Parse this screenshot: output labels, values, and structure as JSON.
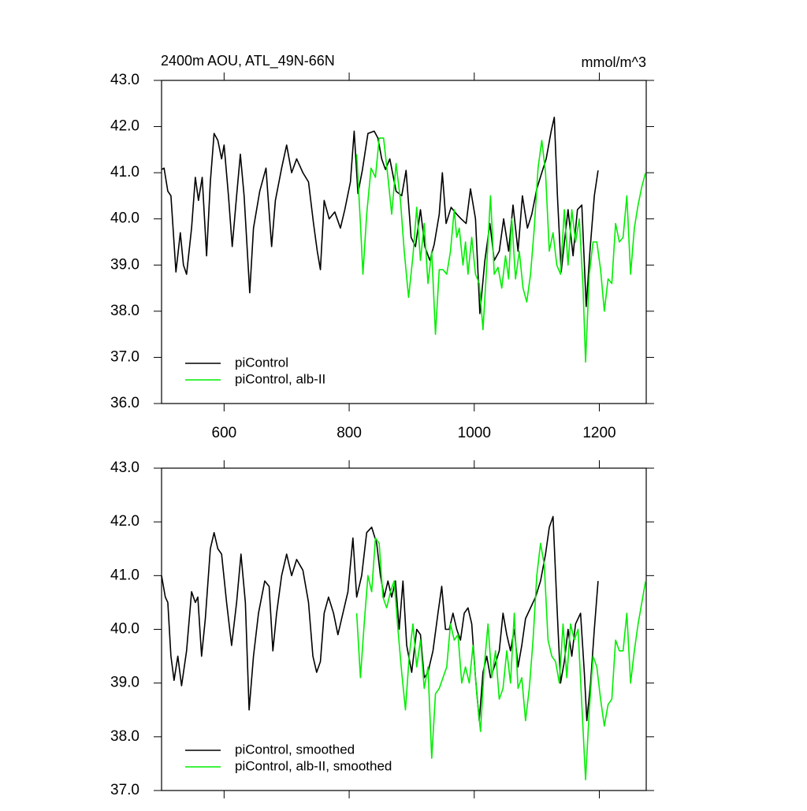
{
  "chart_data": [
    {
      "type": "line",
      "title": "2400m AOU, ATL_49N-66N",
      "units": "mmol/m^3",
      "xlim": [
        500,
        1275
      ],
      "xticks": [
        600,
        800,
        1000,
        1200
      ],
      "ylim": [
        36,
        43
      ],
      "yticks": [
        {
          "value": 36,
          "label": "36.0"
        },
        {
          "value": 37,
          "label": "37.0"
        },
        {
          "value": 38,
          "label": "38.0"
        },
        {
          "value": 39,
          "label": "39.0"
        },
        {
          "value": 40,
          "label": "40.0"
        },
        {
          "value": 41,
          "label": "41.0"
        },
        {
          "value": 42,
          "label": "42.0"
        },
        {
          "value": 43,
          "label": "43.0"
        }
      ],
      "legend": "lower left",
      "series": [
        {
          "name": "piControl",
          "color": "#000000",
          "x": [
            500,
            504,
            510,
            515,
            523,
            530,
            535,
            540,
            548,
            554,
            559,
            565,
            572,
            578,
            584,
            590,
            596,
            600,
            607,
            613,
            620,
            626,
            632,
            641,
            647,
            657,
            667,
            676,
            682,
            692,
            700,
            708,
            716,
            726,
            735,
            743,
            749,
            754,
            760,
            768,
            777,
            786,
            793,
            802,
            808,
            814,
            821,
            830,
            840,
            846,
            852,
            858,
            865,
            875,
            884,
            891,
            899,
            906,
            914,
            921,
            929,
            936,
            944,
            949,
            955,
            963,
            972,
            979,
            987,
            994,
            1002,
            1009,
            1017,
            1025,
            1032,
            1040,
            1047,
            1055,
            1062,
            1070,
            1077,
            1085,
            1092,
            1100,
            1108,
            1115,
            1123,
            1128,
            1133,
            1139,
            1145,
            1150,
            1158,
            1165,
            1172,
            1179,
            1185,
            1192,
            1198
          ],
          "values": [
            41.07,
            41.1,
            40.6,
            40.5,
            38.85,
            39.7,
            39.0,
            38.8,
            39.8,
            40.9,
            40.4,
            40.9,
            39.2,
            40.8,
            41.85,
            41.7,
            41.3,
            41.6,
            40.5,
            39.4,
            40.5,
            41.4,
            40.5,
            38.4,
            39.8,
            40.6,
            41.1,
            39.4,
            40.4,
            41.1,
            41.6,
            41.0,
            41.3,
            41.0,
            40.8,
            39.9,
            39.3,
            38.9,
            40.4,
            40.0,
            40.15,
            39.8,
            40.2,
            40.8,
            41.9,
            40.55,
            41.05,
            41.85,
            41.9,
            41.75,
            41.3,
            41.07,
            41.3,
            40.6,
            40.5,
            41.05,
            39.6,
            39.4,
            40.2,
            39.4,
            39.1,
            39.45,
            40.1,
            41.0,
            39.9,
            40.25,
            40.1,
            40.0,
            39.9,
            40.65,
            40.0,
            37.95,
            39.1,
            39.9,
            39.1,
            39.3,
            40.0,
            39.3,
            40.3,
            39.3,
            40.5,
            39.8,
            40.1,
            40.65,
            41.0,
            41.3,
            41.9,
            42.2,
            40.5,
            38.85,
            39.6,
            40.2,
            39.2,
            40.2,
            40.3,
            38.1,
            39.3,
            40.5,
            41.05
          ]
        },
        {
          "name": "piControl, alb-II",
          "color": "#00ee00",
          "x": [
            812,
            818,
            822,
            828,
            835,
            842,
            848,
            855,
            862,
            868,
            875,
            882,
            888,
            895,
            902,
            908,
            914,
            920,
            926,
            932,
            938,
            944,
            950,
            956,
            962,
            968,
            972,
            976,
            982,
            986,
            990,
            996,
            1002,
            1008,
            1014,
            1020,
            1026,
            1032,
            1038,
            1044,
            1050,
            1055,
            1060,
            1066,
            1072,
            1078,
            1084,
            1090,
            1096,
            1102,
            1108,
            1114,
            1120,
            1126,
            1132,
            1138,
            1144,
            1150,
            1156,
            1162,
            1168,
            1174,
            1178,
            1184,
            1190,
            1196,
            1202,
            1208,
            1214,
            1220,
            1226,
            1232,
            1238,
            1244,
            1250,
            1256,
            1262,
            1268,
            1274
          ],
          "values": [
            41.4,
            39.9,
            38.8,
            40.1,
            41.1,
            40.9,
            41.75,
            41.75,
            40.9,
            40.1,
            41.2,
            40.4,
            39.3,
            38.3,
            39.2,
            40.25,
            39.1,
            39.9,
            38.6,
            39.3,
            37.5,
            38.9,
            38.9,
            38.8,
            39.3,
            40.2,
            39.6,
            39.8,
            39.0,
            39.5,
            38.8,
            39.6,
            38.8,
            38.6,
            37.6,
            39.0,
            40.5,
            38.8,
            38.95,
            38.5,
            39.2,
            38.7,
            40.0,
            38.7,
            39.3,
            38.5,
            38.2,
            38.8,
            39.8,
            41.1,
            41.7,
            41.0,
            39.3,
            39.7,
            39.0,
            38.8,
            40.2,
            39.0,
            40.2,
            39.5,
            40.0,
            38.5,
            36.9,
            38.8,
            39.5,
            39.5,
            38.9,
            38.0,
            38.7,
            38.6,
            39.9,
            39.5,
            39.6,
            40.5,
            38.8,
            39.8,
            40.3,
            40.7,
            41.0
          ]
        }
      ]
    },
    {
      "type": "line",
      "xlim": [
        500,
        1275
      ],
      "xticks": [
        600,
        800,
        1000,
        1200
      ],
      "ylim": [
        37,
        43
      ],
      "yticks": [
        {
          "value": 37,
          "label": "37.0"
        },
        {
          "value": 38,
          "label": "38.0"
        },
        {
          "value": 39,
          "label": "39.0"
        },
        {
          "value": 40,
          "label": "40.0"
        },
        {
          "value": 41,
          "label": "41.0"
        },
        {
          "value": 42,
          "label": "42.0"
        },
        {
          "value": 43,
          "label": "43.0"
        }
      ],
      "legend": "lower left",
      "series": [
        {
          "name": "piControl, smoothed",
          "color": "#000000",
          "x": [
            500,
            506,
            510,
            515,
            520,
            526,
            532,
            540,
            548,
            554,
            558,
            564,
            570,
            578,
            584,
            590,
            596,
            604,
            612,
            620,
            627,
            634,
            640,
            647,
            655,
            665,
            672,
            678,
            684,
            692,
            700,
            708,
            716,
            726,
            735,
            742,
            748,
            754,
            760,
            767,
            775,
            782,
            788,
            798,
            806,
            812,
            820,
            828,
            836,
            844,
            850,
            856,
            862,
            868,
            874,
            880,
            886,
            892,
            900,
            908,
            914,
            920,
            926,
            934,
            942,
            948,
            954,
            960,
            966,
            972,
            978,
            984,
            990,
            996,
            1002,
            1008,
            1014,
            1020,
            1026,
            1032,
            1040,
            1046,
            1052,
            1058,
            1064,
            1070,
            1076,
            1082,
            1090,
            1098,
            1106,
            1114,
            1120,
            1126,
            1132,
            1138,
            1144,
            1150,
            1156,
            1162,
            1170,
            1176,
            1180,
            1186,
            1192,
            1198
          ],
          "values": [
            41.0,
            40.6,
            40.5,
            39.5,
            39.05,
            39.5,
            38.95,
            39.6,
            40.7,
            40.5,
            40.6,
            39.5,
            40.2,
            41.5,
            41.8,
            41.5,
            41.4,
            40.5,
            39.7,
            40.5,
            41.4,
            40.5,
            38.5,
            39.5,
            40.3,
            40.9,
            40.8,
            39.6,
            40.3,
            41.0,
            41.4,
            41.0,
            41.3,
            41.1,
            40.5,
            39.5,
            39.2,
            39.4,
            40.3,
            40.6,
            40.3,
            39.9,
            40.2,
            40.7,
            41.7,
            40.6,
            41.0,
            41.8,
            41.9,
            41.6,
            41.0,
            40.6,
            40.9,
            40.6,
            40.9,
            40.0,
            40.9,
            39.7,
            39.2,
            40.0,
            39.9,
            39.1,
            39.2,
            39.6,
            40.3,
            40.8,
            40.0,
            40.0,
            40.3,
            40.0,
            39.8,
            40.3,
            40.4,
            40.1,
            39.1,
            38.3,
            39.2,
            39.5,
            39.1,
            39.3,
            39.6,
            40.3,
            39.9,
            39.6,
            40.0,
            39.3,
            39.7,
            40.2,
            40.4,
            40.6,
            40.9,
            41.4,
            41.9,
            42.1,
            40.5,
            39.0,
            39.4,
            40.0,
            39.5,
            40.1,
            40.3,
            39.2,
            38.3,
            39.0,
            40.0,
            40.9
          ]
        },
        {
          "name": "piControl, alb-II, smoothed",
          "color": "#00ee00",
          "x": [
            812,
            818,
            824,
            830,
            836,
            842,
            848,
            854,
            860,
            866,
            872,
            878,
            884,
            890,
            896,
            902,
            908,
            914,
            920,
            926,
            932,
            938,
            944,
            950,
            956,
            962,
            968,
            974,
            980,
            986,
            992,
            998,
            1004,
            1010,
            1016,
            1022,
            1028,
            1034,
            1040,
            1046,
            1052,
            1058,
            1064,
            1070,
            1076,
            1082,
            1088,
            1094,
            1100,
            1106,
            1112,
            1118,
            1124,
            1130,
            1136,
            1142,
            1148,
            1154,
            1160,
            1166,
            1172,
            1178,
            1184,
            1190,
            1196,
            1202,
            1208,
            1214,
            1220,
            1226,
            1232,
            1238,
            1244,
            1250,
            1256,
            1262,
            1268,
            1274
          ],
          "values": [
            40.3,
            39.1,
            40.1,
            41.0,
            40.7,
            41.7,
            41.6,
            40.6,
            40.4,
            40.7,
            40.9,
            40.0,
            39.2,
            38.5,
            39.5,
            40.1,
            39.3,
            39.8,
            38.9,
            39.3,
            37.6,
            38.8,
            38.9,
            39.1,
            39.3,
            40.1,
            39.8,
            39.9,
            39.0,
            39.3,
            39.0,
            39.7,
            38.8,
            38.1,
            39.3,
            40.1,
            39.1,
            39.6,
            38.7,
            38.9,
            39.6,
            39.0,
            40.3,
            38.9,
            39.1,
            38.3,
            38.9,
            39.8,
            41.0,
            41.6,
            41.2,
            39.8,
            39.5,
            39.4,
            39.0,
            40.1,
            39.1,
            40.1,
            39.8,
            40.0,
            38.6,
            37.2,
            38.5,
            39.5,
            39.3,
            38.7,
            38.2,
            38.6,
            38.7,
            39.8,
            39.6,
            39.6,
            40.3,
            39.0,
            39.6,
            40.1,
            40.5,
            40.9
          ]
        }
      ]
    }
  ]
}
